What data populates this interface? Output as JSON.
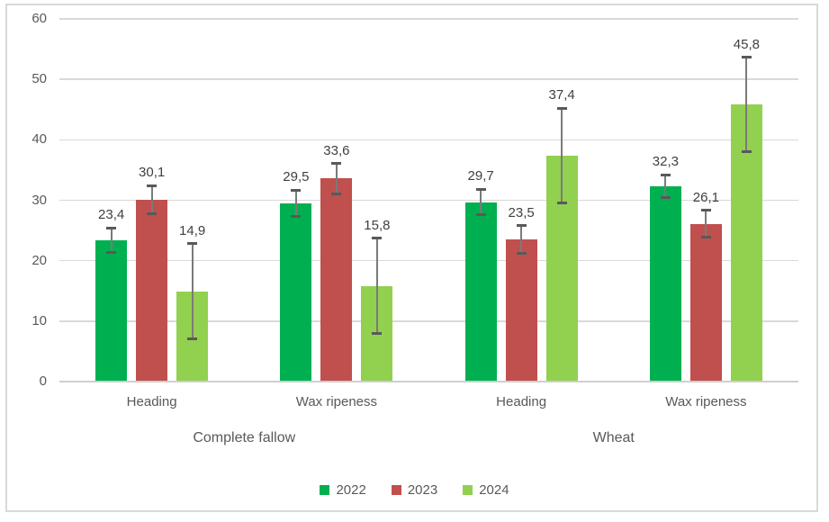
{
  "chart_data": {
    "type": "bar",
    "title": "",
    "xlabel": "",
    "ylabel": "",
    "categories": [
      "Heading",
      "Wax ripeness",
      "Heading",
      "Wax ripeness"
    ],
    "group_labels": [
      "Complete fallow",
      "Wheat"
    ],
    "series": [
      {
        "name": "2022",
        "color": "#00B050",
        "values": [
          23.4,
          29.5,
          29.7,
          32.3
        ],
        "labels": [
          "23,4",
          "29,5",
          "29,7",
          "32,3"
        ],
        "errors": [
          2.0,
          2.2,
          2.1,
          1.9
        ]
      },
      {
        "name": "2023",
        "color": "#C0504D",
        "values": [
          30.1,
          33.6,
          23.5,
          26.1
        ],
        "labels": [
          "30,1",
          "33,6",
          "23,5",
          "26,1"
        ],
        "errors": [
          2.3,
          2.5,
          2.3,
          2.2
        ]
      },
      {
        "name": "2024",
        "color": "#92D050",
        "values": [
          14.9,
          15.8,
          37.4,
          45.8
        ],
        "labels": [
          "14,9",
          "15,8",
          "37,4",
          "45,8"
        ],
        "errors": [
          7.9,
          7.9,
          7.8,
          7.8
        ]
      }
    ],
    "y_axis": {
      "min": 0,
      "max": 60,
      "step": 10,
      "tick_labels": [
        "0",
        "10",
        "20",
        "30",
        "40",
        "50",
        "60"
      ]
    },
    "grid": true,
    "legend_position": "bottom",
    "error_bars": true,
    "colors": {
      "gridline": "#D9D9D9",
      "axis_line": "#D0CECE",
      "error_bar": "#595959",
      "value_label": "#404040",
      "axis_text": "#595959",
      "border": "#D9D9D9",
      "background": "#FFFFFF"
    }
  }
}
